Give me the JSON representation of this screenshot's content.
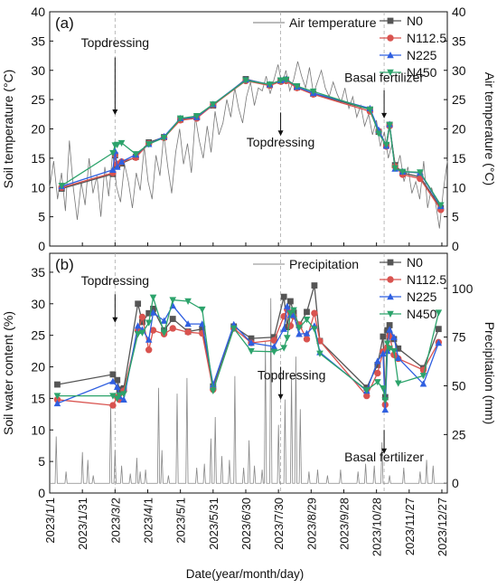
{
  "figure": {
    "xlabel": "Date(year/month/day)",
    "x_ticks": [
      "2023/1/1",
      "2023/1/31",
      "2023/3/2",
      "2023/4/1",
      "2023/5/1",
      "2023/5/31",
      "2023/6/30",
      "2023/7/30",
      "2023/8/29",
      "2023/9/28",
      "2023/10/28",
      "2023/11/27",
      "2023/12/27"
    ],
    "colors": {
      "N0": "#555555",
      "N112.5": "#d9534f",
      "N225": "#2f5fe0",
      "N450": "#2ca36b",
      "air": "#777777",
      "precip": "#888888",
      "guide": "#aaaaaa"
    }
  },
  "chart_data": [
    {
      "type": "line",
      "panel_label": "(a)",
      "ylabel": "Soil temperature (°C)",
      "y2label": "Air temperature (°C)",
      "ylim": [
        0,
        40
      ],
      "y2lim": [
        0,
        40
      ],
      "yticks": [
        0,
        5,
        10,
        15,
        20,
        25,
        30,
        35,
        40
      ],
      "line_label": "Air temperature",
      "legend_position": "top-right",
      "guide_dates": [
        "2023-03-02",
        "2023-08-01",
        "2023-11-04"
      ],
      "annotations": [
        {
          "text": "Topdressing",
          "date": "2023-03-02",
          "y": 34
        },
        {
          "text": "Topdressing",
          "date": "2023-08-01",
          "y": 17
        },
        {
          "text": "Basal fertilizer",
          "date": "2023-11-04",
          "y": 28
        }
      ],
      "x_dates": [
        "2023-01-12",
        "2023-02-28",
        "2023-03-02",
        "2023-03-04",
        "2023-03-08",
        "2023-03-21",
        "2023-04-02",
        "2023-04-16",
        "2023-05-01",
        "2023-05-16",
        "2023-05-31",
        "2023-06-30",
        "2023-07-22",
        "2023-08-01",
        "2023-08-06",
        "2023-08-16",
        "2023-08-31",
        "2023-10-22",
        "2023-10-30",
        "2023-11-06",
        "2023-11-09",
        "2023-11-14",
        "2023-11-21",
        "2023-12-07",
        "2023-12-26"
      ],
      "series": [
        {
          "name": "N0",
          "values": [
            9.8,
            12.3,
            15.5,
            13.8,
            14.1,
            15.2,
            17.7,
            18.6,
            21.6,
            22.0,
            24.0,
            28.5,
            27.5,
            28.2,
            28.4,
            27.1,
            26.0,
            23.3,
            19.5,
            17.2,
            20.7,
            13.8,
            12.5,
            11.8,
            6.5
          ]
        },
        {
          "name": "N112.5",
          "values": [
            10.0,
            12.5,
            15.6,
            14.0,
            14.4,
            15.1,
            17.5,
            18.5,
            21.5,
            21.8,
            24.1,
            28.2,
            27.4,
            28.1,
            28.2,
            27.0,
            25.9,
            23.0,
            19.6,
            17.0,
            20.5,
            13.6,
            12.2,
            11.5,
            6.2
          ]
        },
        {
          "name": "N225",
          "values": [
            10.2,
            13.0,
            16.2,
            13.5,
            14.4,
            15.6,
            17.4,
            18.7,
            21.8,
            22.0,
            24.2,
            28.4,
            27.6,
            28.3,
            28.5,
            27.2,
            26.1,
            23.5,
            19.8,
            17.1,
            20.8,
            13.2,
            12.7,
            12.5,
            6.8
          ]
        },
        {
          "name": "N450",
          "values": [
            10.3,
            15.9,
            17.2,
            17.3,
            17.6,
            15.7,
            17.4,
            18.5,
            21.8,
            22.2,
            24.2,
            28.3,
            27.6,
            28.3,
            28.4,
            27.3,
            26.4,
            23.3,
            19.2,
            17.3,
            20.7,
            13.3,
            12.7,
            12.6,
            7.0
          ]
        }
      ],
      "air_temperature": {
        "x_start": "2023-01-01",
        "values": [
          10.0,
          14.5,
          8.0,
          12.5,
          6.0,
          18.0,
          10.0,
          4.5,
          11.0,
          7.0,
          15.0,
          9.0,
          12.0,
          5.0,
          13.5,
          8.5,
          16.0,
          10.0,
          7.5,
          14.0,
          11.0,
          6.5,
          12.5,
          9.5,
          17.0,
          11.0,
          8.0,
          15.5,
          12.0,
          19.0,
          13.5,
          9.0,
          16.0,
          20.0,
          14.0,
          17.5,
          12.5,
          22.0,
          18.0,
          15.0,
          20.5,
          16.0,
          23.0,
          19.0,
          21.0,
          25.0,
          22.0,
          27.0,
          23.5,
          21.0,
          25.5,
          28.0,
          24.0,
          27.0,
          26.5,
          29.0,
          26.0,
          28.5,
          31.0,
          27.5,
          30.0,
          26.5,
          28.5,
          31.5,
          29.0,
          27.0,
          30.5,
          26.0,
          28.0,
          30.0,
          27.0,
          25.5,
          28.0,
          26.0,
          24.5,
          27.0,
          23.5,
          25.5,
          22.0,
          24.0,
          20.5,
          22.5,
          19.0,
          21.5,
          17.0,
          19.5,
          15.0,
          17.5,
          13.0,
          15.5,
          11.0,
          13.5,
          9.0,
          11.0,
          8.0,
          14.5,
          6.5,
          10.0,
          7.5,
          3.0,
          9.5,
          14.5
        ]
      }
    },
    {
      "type": "line",
      "panel_label": "(b)",
      "ylabel": "Soil water content (%)",
      "y2label": "Precipitation (mm)",
      "ylim": [
        0,
        38
      ],
      "y2lim": [
        -5,
        118
      ],
      "yticks": [
        0,
        5,
        10,
        15,
        20,
        25,
        30,
        35
      ],
      "y2ticks": [
        0,
        25,
        50,
        75,
        100
      ],
      "line_label": "Precipitation",
      "legend_position": "top-right",
      "guide_dates": [
        "2023-03-02",
        "2023-08-01",
        "2023-11-04"
      ],
      "annotations": [
        {
          "text": "Topdressing",
          "date": "2023-03-02",
          "y": 33
        },
        {
          "text": "Topdressing",
          "date": "2023-08-11",
          "y": 18
        },
        {
          "text": "Basal fertilizer",
          "date": "2023-11-04",
          "y": 5
        }
      ],
      "x_dates": [
        "2023-01-08",
        "2023-02-28",
        "2023-03-04",
        "2023-03-06",
        "2023-03-10",
        "2023-03-23",
        "2023-03-27",
        "2023-04-02",
        "2023-04-06",
        "2023-04-16",
        "2023-04-24",
        "2023-05-08",
        "2023-05-21",
        "2023-05-31",
        "2023-06-19",
        "2023-07-05",
        "2023-07-26",
        "2023-08-04",
        "2023-08-07",
        "2023-08-10",
        "2023-08-13",
        "2023-08-18",
        "2023-08-25",
        "2023-09-01",
        "2023-09-06",
        "2023-10-19",
        "2023-10-29",
        "2023-11-03",
        "2023-11-05",
        "2023-11-07",
        "2023-11-09",
        "2023-11-13",
        "2023-11-17",
        "2023-12-10",
        "2023-12-24"
      ],
      "series": [
        {
          "name": "N0",
          "values": [
            17.2,
            18.8,
            17.9,
            16.4,
            16.6,
            30.0,
            27.1,
            28.5,
            29.2,
            25.8,
            27.6,
            25.6,
            26.0,
            16.9,
            26.4,
            24.5,
            24.7,
            31.1,
            26.3,
            30.4,
            28.6,
            26.6,
            28.7,
            32.9,
            24.1,
            16.7,
            20.3,
            24.8,
            15.2,
            25.8,
            26.6,
            24.4,
            22.9,
            19.8,
            26.0
          ]
        },
        {
          "name": "N112.5",
          "values": [
            14.8,
            13.9,
            15.2,
            14.8,
            16.2,
            25.7,
            27.9,
            22.7,
            25.8,
            25.2,
            26.1,
            25.5,
            25.3,
            16.4,
            26.1,
            23.8,
            24.2,
            28.0,
            29.1,
            26.5,
            28.0,
            26.7,
            24.4,
            28.5,
            24.1,
            15.4,
            19.0,
            22.4,
            14.0,
            23.1,
            24.9,
            21.9,
            21.3,
            19.5,
            23.9
          ]
        },
        {
          "name": "N225",
          "values": [
            14.2,
            17.7,
            16.8,
            15.3,
            14.8,
            26.5,
            25.9,
            24.3,
            28.6,
            27.3,
            29.7,
            26.8,
            26.8,
            17.2,
            26.7,
            23.8,
            23.2,
            26.0,
            29.6,
            28.2,
            28.2,
            25.2,
            25.3,
            26.5,
            22.3,
            16.2,
            20.9,
            22.1,
            13.2,
            22.5,
            25.9,
            24.7,
            21.4,
            17.3,
            23.8
          ]
        },
        {
          "name": "N450",
          "values": [
            15.4,
            15.4,
            15.0,
            15.5,
            15.7,
            25.2,
            25.4,
            27.0,
            31.0,
            25.4,
            30.6,
            30.4,
            29.1,
            16.2,
            26.1,
            22.5,
            22.4,
            23.0,
            24.6,
            28.5,
            29.0,
            26.2,
            27.5,
            26.0,
            22.1,
            16.3,
            17.6,
            16.6,
            14.7,
            23.7,
            22.9,
            22.5,
            17.4,
            18.6,
            28.6
          ]
        }
      ],
      "precipitation": {
        "spikes": [
          [
            6,
            24
          ],
          [
            15,
            6
          ],
          [
            30,
            16
          ],
          [
            35,
            12
          ],
          [
            40,
            4
          ],
          [
            56,
            40
          ],
          [
            60,
            17
          ],
          [
            66,
            9
          ],
          [
            74,
            5
          ],
          [
            80,
            13
          ],
          [
            83,
            6
          ],
          [
            88,
            7
          ],
          [
            100,
            49
          ],
          [
            103,
            17
          ],
          [
            109,
            4
          ],
          [
            117,
            46
          ],
          [
            126,
            54
          ],
          [
            135,
            8
          ],
          [
            142,
            10
          ],
          [
            148,
            23
          ],
          [
            152,
            34
          ],
          [
            158,
            14
          ],
          [
            165,
            12
          ],
          [
            170,
            55
          ],
          [
            178,
            8
          ],
          [
            183,
            22
          ],
          [
            188,
            9
          ],
          [
            195,
            7
          ],
          [
            198,
            73
          ],
          [
            203,
            95
          ],
          [
            210,
            30
          ],
          [
            216,
            43
          ],
          [
            222,
            55
          ],
          [
            226,
            65
          ],
          [
            230,
            38
          ],
          [
            238,
            6
          ],
          [
            246,
            7
          ],
          [
            255,
            4
          ],
          [
            267,
            7
          ],
          [
            283,
            6
          ],
          [
            290,
            10
          ],
          [
            298,
            9
          ],
          [
            305,
            21
          ],
          [
            312,
            4
          ],
          [
            325,
            8
          ],
          [
            340,
            6
          ],
          [
            346,
            12
          ],
          [
            352,
            9
          ]
        ]
      }
    }
  ]
}
